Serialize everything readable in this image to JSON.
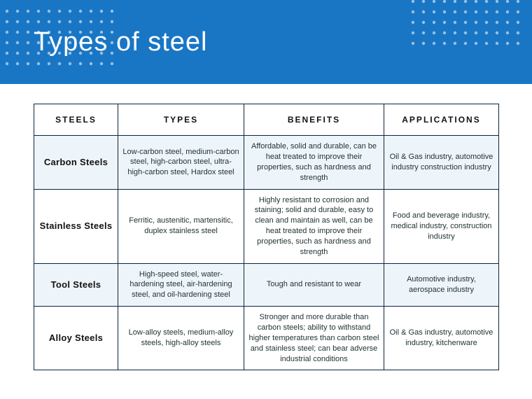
{
  "header": {
    "title": "Types of steel",
    "bg_color": "#1976c5",
    "title_color": "#ffffff",
    "title_fontsize": 38
  },
  "table": {
    "border_color": "#0a2540",
    "tint_color": "#eef5fa",
    "columns": [
      "STEELS",
      "TYPES",
      "BENEFITS",
      "APPLICATIONS"
    ],
    "rows": [
      {
        "steels": "Carbon Steels",
        "types": "Low-carbon steel, medium-carbon steel, high-carbon steel, ultra-high-carbon steel, Hardox steel",
        "benefits": "Affordable, solid and durable, can be heat treated to improve their properties, such as hardness and strength",
        "applications": "Oil & Gas industry, automotive industry construction industry",
        "tint": true
      },
      {
        "steels": "Stainless Steels",
        "types": "Ferritic, austenitic, martensitic, duplex stainless steel",
        "benefits": "Highly resistant to corrosion and staining; solid and durable, easy to clean and maintain as well, can be heat treated to improve their properties, such as hardness and strength",
        "applications": "Food and beverage industry, medical industry, construction industry",
        "tint": false
      },
      {
        "steels": "Tool Steels",
        "types": "High-speed steel, water-hardening steel, air-hardening steel, and oil-hardening steel",
        "benefits": "Tough and resistant to wear",
        "applications": "Automotive industry, aerospace industry",
        "tint": true
      },
      {
        "steels": "Alloy Steels",
        "types": "Low-alloy steels, medium-alloy steels, high-alloy steels",
        "benefits": "Stronger and more durable than carbon steels; ability to withstand higher temperatures than carbon steel and stainless steel; can bear adverse industrial conditions",
        "applications": "Oil & Gas industry,  automotive industry, kitchenware",
        "tint": false
      }
    ]
  }
}
